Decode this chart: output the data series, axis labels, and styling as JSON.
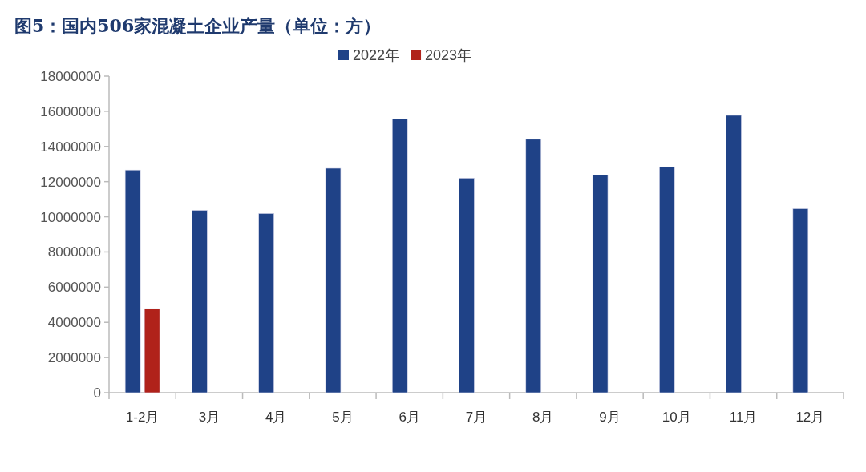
{
  "chart_data": {
    "type": "bar",
    "title": "图5：国内506家混凝土企业产量（单位：方）",
    "categories": [
      "1-2月",
      "3月",
      "4月",
      "5月",
      "6月",
      "7月",
      "8月",
      "9月",
      "10月",
      "11月",
      "12月"
    ],
    "series": [
      {
        "name": "2022年",
        "color": "#1f4287",
        "values": [
          12660000,
          10370000,
          10190000,
          12760000,
          15570000,
          12200000,
          14410000,
          12380000,
          12840000,
          15770000,
          10460000
        ]
      },
      {
        "name": "2023年",
        "color": "#b0221a",
        "values": [
          4780000,
          null,
          null,
          null,
          null,
          null,
          null,
          null,
          null,
          null,
          null
        ]
      }
    ],
    "ylim": [
      0,
      18000000
    ],
    "yticks": [
      0,
      2000000,
      4000000,
      6000000,
      8000000,
      10000000,
      12000000,
      14000000,
      16000000,
      18000000
    ],
    "grid": false,
    "legend": "top"
  }
}
